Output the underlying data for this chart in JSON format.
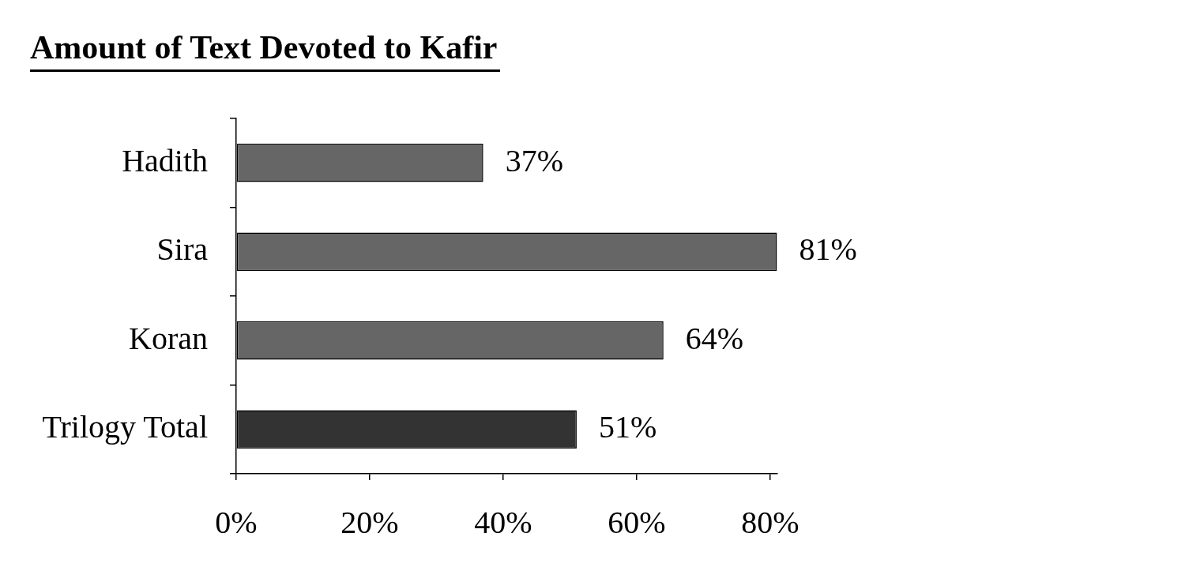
{
  "chart_data": {
    "type": "bar",
    "title": "Amount of Text Devoted to Kafir",
    "orientation": "horizontal",
    "categories": [
      "Hadith",
      "Sira",
      "Koran",
      "Trilogy Total"
    ],
    "values": [
      37,
      81,
      64,
      51
    ],
    "colors": [
      "#666666",
      "#666666",
      "#666666",
      "#333333"
    ],
    "value_labels": [
      "37%",
      "81%",
      "64%",
      "51%"
    ],
    "xlim": [
      0,
      81
    ],
    "xticks": [
      {
        "value": 0,
        "label": "0%"
      },
      {
        "value": 20,
        "label": "20%"
      },
      {
        "value": 40,
        "label": "40%"
      },
      {
        "value": 60,
        "label": "60%"
      },
      {
        "value": 80,
        "label": "80%"
      }
    ]
  }
}
